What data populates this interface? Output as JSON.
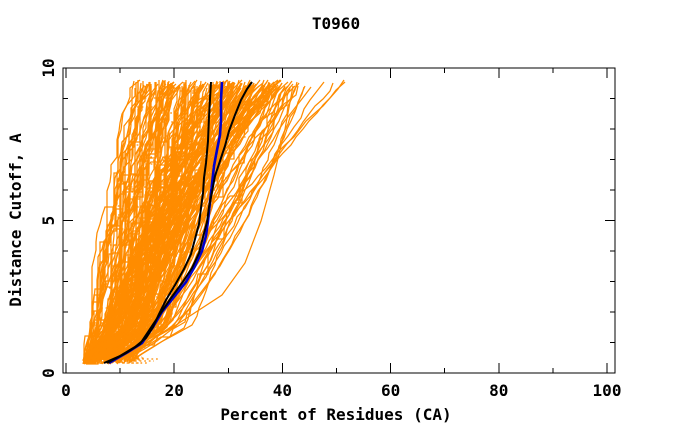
{
  "title": "T0960",
  "chart_data": {
    "type": "line",
    "title": "T0960",
    "xlabel": "Percent of Residues (CA)",
    "ylabel": "Distance Cutoff, A",
    "xlim": [
      0,
      100
    ],
    "ylim": [
      0,
      10
    ],
    "x_major_ticks": [
      0,
      20,
      40,
      60,
      80,
      100
    ],
    "x_minor_ticks": [
      10,
      30,
      50,
      70,
      90
    ],
    "y_major_ticks": [
      0,
      5,
      10
    ],
    "y_minor_ticks": [
      1,
      2,
      3,
      4,
      6,
      7,
      8,
      9
    ],
    "x_tick_labels": [
      "0",
      "20",
      "40",
      "60",
      "80",
      "100"
    ],
    "y_tick_labels": [
      "0",
      "5",
      "10"
    ],
    "grid": false,
    "legend": null,
    "colors": {
      "ensemble": "#FF8C00",
      "highlight": "#000000",
      "reference": "#0000CC"
    },
    "ensemble": {
      "description": "server model SDA curves (percent of CA residues under distance cutoff)",
      "count": 200,
      "seed": 1234567,
      "x_start_range": [
        3.2,
        12.5
      ],
      "x_end_range": [
        11,
        51.5
      ],
      "y_range": [
        0.3,
        9.6
      ],
      "outlier_count": 5,
      "dotted_segment_count": 140,
      "bottom_dotted_count": 14,
      "stray_points": [
        [
          8,
          0.35
        ],
        [
          13,
          0.8
        ],
        [
          19.8,
          1.5
        ],
        [
          28.8,
          2.56
        ],
        [
          33,
          3.6
        ],
        [
          36,
          5
        ],
        [
          38.5,
          6.5
        ],
        [
          40.5,
          8
        ],
        [
          42,
          9.4
        ]
      ]
    },
    "series": [
      {
        "name": "model-blue",
        "color": "#0000CC",
        "width": 2.6,
        "points": [
          [
            7.9,
            0.33
          ],
          [
            11.4,
            0.68
          ],
          [
            14.0,
            1.0
          ],
          [
            16.1,
            1.5
          ],
          [
            17.8,
            2.0
          ],
          [
            20.0,
            2.5
          ],
          [
            22.1,
            3.0
          ],
          [
            23.9,
            3.5
          ],
          [
            25.2,
            4.0
          ],
          [
            25.9,
            4.5
          ],
          [
            26.3,
            5.0
          ],
          [
            26.6,
            5.6
          ],
          [
            26.9,
            6.2
          ],
          [
            27.4,
            6.8
          ],
          [
            28.0,
            7.3
          ],
          [
            28.4,
            7.8
          ],
          [
            28.6,
            8.3
          ],
          [
            28.7,
            9.0
          ],
          [
            28.8,
            9.55
          ]
        ]
      },
      {
        "name": "model-black-1",
        "color": "#000000",
        "width": 2,
        "points": [
          [
            7,
            0.33
          ],
          [
            10,
            0.55
          ],
          [
            12.8,
            0.85
          ],
          [
            14.8,
            1.15
          ],
          [
            16.1,
            1.5
          ],
          [
            17.1,
            1.95
          ],
          [
            18.5,
            2.4
          ],
          [
            20.2,
            2.9
          ],
          [
            21.8,
            3.4
          ],
          [
            23.1,
            3.9
          ],
          [
            23.9,
            4.4
          ],
          [
            24.5,
            4.9
          ],
          [
            24.9,
            5.4
          ],
          [
            25.3,
            5.9
          ],
          [
            25.6,
            6.4
          ],
          [
            25.9,
            6.9
          ],
          [
            26.3,
            7.6
          ],
          [
            26.5,
            8.4
          ],
          [
            26.7,
            9.0
          ],
          [
            26.8,
            9.55
          ]
        ]
      },
      {
        "name": "model-black-2",
        "color": "#000000",
        "width": 2,
        "points": [
          [
            7.6,
            0.33
          ],
          [
            11,
            0.65
          ],
          [
            13.6,
            0.95
          ],
          [
            15.6,
            1.45
          ],
          [
            17.3,
            1.95
          ],
          [
            19.4,
            2.45
          ],
          [
            21.5,
            2.95
          ],
          [
            23.3,
            3.45
          ],
          [
            24.6,
            3.95
          ],
          [
            25.4,
            4.45
          ],
          [
            26.0,
            4.95
          ],
          [
            26.5,
            5.45
          ],
          [
            27.0,
            5.95
          ],
          [
            27.6,
            6.45
          ],
          [
            28.5,
            6.95
          ],
          [
            29.3,
            7.45
          ],
          [
            30.2,
            7.95
          ],
          [
            31.2,
            8.45
          ],
          [
            32.3,
            8.95
          ],
          [
            33.4,
            9.3
          ],
          [
            34.4,
            9.55
          ]
        ]
      }
    ]
  }
}
